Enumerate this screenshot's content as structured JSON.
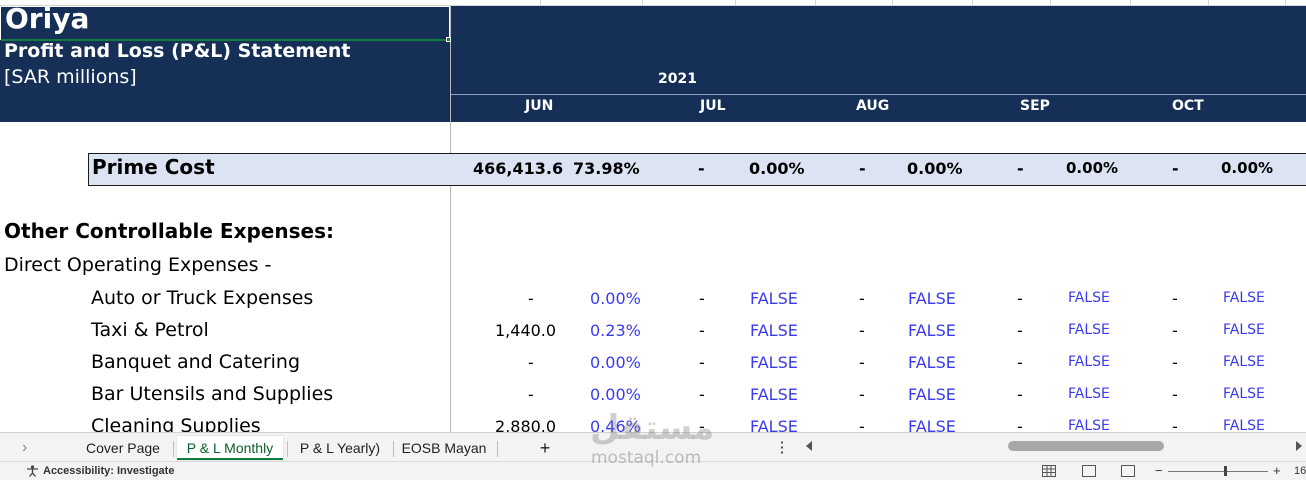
{
  "header": {
    "company": "Oriya",
    "statement": "Profit and Loss (P&L) Statement",
    "units": "[SAR millions]",
    "year": "2021",
    "months": [
      "JUN",
      "JUL",
      "AUG",
      "SEP",
      "OCT"
    ]
  },
  "prime_cost": {
    "label": "Prime Cost",
    "values": [
      "466,413.6",
      "73.98%",
      "-",
      "0.00%",
      "-",
      "0.00%",
      "-",
      "0.00%",
      "-",
      "0.00%"
    ]
  },
  "section": {
    "title": "Other Controllable Expenses:",
    "subheading": "Direct Operating Expenses  -"
  },
  "rows": [
    {
      "label": "Auto or Truck Expenses",
      "jun": "-",
      "jun_pct": "0.00%",
      "jul": "-",
      "jul_pct": "FALSE",
      "aug": "-",
      "aug_pct": "FALSE",
      "sep": "-",
      "sep_pct": "FALSE",
      "oct": "-",
      "oct_pct": "FALSE"
    },
    {
      "label": "Taxi & Petrol",
      "jun": "1,440.0",
      "jun_pct": "0.23%",
      "jul": "-",
      "jul_pct": "FALSE",
      "aug": "-",
      "aug_pct": "FALSE",
      "sep": "-",
      "sep_pct": "FALSE",
      "oct": "-",
      "oct_pct": "FALSE"
    },
    {
      "label": "Banquet and Catering",
      "jun": "-",
      "jun_pct": "0.00%",
      "jul": "-",
      "jul_pct": "FALSE",
      "aug": "-",
      "aug_pct": "FALSE",
      "sep": "-",
      "sep_pct": "FALSE",
      "oct": "-",
      "oct_pct": "FALSE"
    },
    {
      "label": "Bar Utensils and Supplies",
      "jun": "-",
      "jun_pct": "0.00%",
      "jul": "-",
      "jul_pct": "FALSE",
      "aug": "-",
      "aug_pct": "FALSE",
      "sep": "-",
      "sep_pct": "FALSE",
      "oct": "-",
      "oct_pct": "FALSE"
    },
    {
      "label": "Cleaning Supplies",
      "jun": "2,880.0",
      "jun_pct": "0.46%",
      "jul": "-",
      "jul_pct": "FALSE",
      "aug": "-",
      "aug_pct": "FALSE",
      "sep": "-",
      "sep_pct": "FALSE",
      "oct": "-",
      "oct_pct": "FALSE"
    }
  ],
  "tabs": {
    "items": [
      "Cover Page",
      "P & L Monthly",
      "P & L Yearly)",
      "EOSB Mayan"
    ],
    "active": "P & L Monthly",
    "add": "+",
    "more": "⋮"
  },
  "status": {
    "accessibility": "Accessibility: Investigate",
    "zoom": "16",
    "zoom_minus": "−",
    "zoom_plus": "+"
  },
  "watermark": {
    "arabic": "مستقل",
    "latin": "mostaql.com"
  }
}
